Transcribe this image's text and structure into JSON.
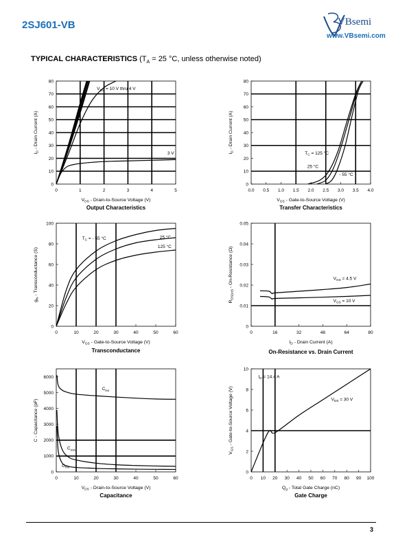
{
  "header": {
    "part_number": "2SJ601-VB",
    "logo_text": "VBsemi",
    "logo_mark": "VB",
    "url": "www.VBsemi.com"
  },
  "section": {
    "title": "TYPICAL CHARACTERISTICS",
    "condition_prefix": "(T",
    "condition_sub": "A",
    "condition_suffix": " = 25 °C, unless otherwise noted)"
  },
  "footer": {
    "page": "3"
  },
  "colors": {
    "brand": "#1a6fb7",
    "ink": "#000000"
  },
  "chart_data": [
    {
      "id": "output",
      "type": "line",
      "title": "Output Characteristics",
      "xlabel": "V_{DS} - Drain-to-Source Voltage (V)",
      "ylabel": "I_{D} - Drain Current (A)",
      "xlim": [
        0,
        5
      ],
      "ylim": [
        0,
        80
      ],
      "xticks": [
        0,
        1,
        2,
        3,
        4,
        5
      ],
      "yticks": [
        0,
        10,
        20,
        30,
        40,
        50,
        60,
        70,
        80
      ],
      "xgrid": [
        1,
        2,
        3,
        4
      ],
      "ygrid": [
        10,
        20,
        30,
        40,
        50,
        60,
        70
      ],
      "series": [
        {
          "values": [
            [
              0,
              0
            ],
            [
              0.5,
              30
            ],
            [
              1,
              63
            ],
            [
              1.27,
              80
            ]
          ]
        },
        {
          "values": [
            [
              0,
              0
            ],
            [
              0.5,
              29
            ],
            [
              1,
              61
            ],
            [
              1.3,
              80
            ]
          ]
        },
        {
          "values": [
            [
              0,
              0
            ],
            [
              0.5,
              28
            ],
            [
              1,
              59
            ],
            [
              1.33,
              80
            ]
          ]
        },
        {
          "values": [
            [
              0,
              0
            ],
            [
              0.5,
              27
            ],
            [
              1,
              57
            ],
            [
              1.37,
              80
            ]
          ]
        },
        {
          "values": [
            [
              0,
              0
            ],
            [
              0.5,
              26
            ],
            [
              1,
              55
            ],
            [
              1.4,
              80
            ]
          ]
        },
        {
          "values": [
            [
              0,
              0
            ],
            [
              0.5,
              23
            ],
            [
              1,
              47
            ],
            [
              1.5,
              65
            ],
            [
              2,
              75
            ],
            [
              2.5,
              80
            ]
          ]
        },
        {
          "values": [
            [
              0,
              0
            ],
            [
              0.1,
              5
            ],
            [
              0.25,
              10
            ],
            [
              0.5,
              14
            ],
            [
              1,
              16
            ],
            [
              2,
              17.5
            ],
            [
              3,
              18
            ],
            [
              4,
              18.5
            ],
            [
              5,
              19
            ]
          ]
        }
      ],
      "annotations": [
        {
          "text": "V_{GS} = 10 V thru 4 V",
          "x": 1.7,
          "y": 73
        },
        {
          "text": "3 V",
          "x": 4.65,
          "y": 23
        }
      ]
    },
    {
      "id": "transfer",
      "type": "line",
      "title": "Transfer Characteristics",
      "xlabel": "V_{GS} - Gate-to-Source Voltage (V)",
      "ylabel": "I_{D} - Drain Current (A)",
      "xlim": [
        0,
        4
      ],
      "ylim": [
        0,
        80
      ],
      "xticks": [
        "0.0",
        "0.5",
        "1.0",
        "1.5",
        "2.0",
        "2.5",
        "3.0",
        "3.5",
        "4.0"
      ],
      "yticks": [
        0,
        10,
        20,
        30,
        40,
        50,
        60,
        70,
        80
      ],
      "xgrid": [
        1.5,
        2.5,
        3.5
      ],
      "ygrid": [
        10,
        30,
        50,
        70
      ],
      "series": [
        {
          "name": "T_{C} = 125 °C",
          "values": [
            [
              1.9,
              0
            ],
            [
              2.3,
              3
            ],
            [
              2.6,
              10
            ],
            [
              2.9,
              25
            ],
            [
              3.2,
              48
            ],
            [
              3.5,
              70
            ],
            [
              3.7,
              80
            ]
          ]
        },
        {
          "name": "25 °C",
          "values": [
            [
              2.2,
              0
            ],
            [
              2.5,
              3
            ],
            [
              2.75,
              12
            ],
            [
              3.0,
              28
            ],
            [
              3.3,
              52
            ],
            [
              3.55,
              72
            ],
            [
              3.7,
              80
            ]
          ]
        },
        {
          "name": "- 55 °C",
          "values": [
            [
              2.5,
              0
            ],
            [
              2.7,
              3
            ],
            [
              2.9,
              12
            ],
            [
              3.15,
              30
            ],
            [
              3.4,
              55
            ],
            [
              3.6,
              73
            ],
            [
              3.75,
              80
            ]
          ]
        }
      ],
      "annotations": [
        {
          "text": "T_{C} = 125 °C",
          "x": 1.8,
          "y": 23
        },
        {
          "text": "25 °C",
          "x": 1.88,
          "y": 12.5
        },
        {
          "text": "- 55 °C",
          "x": 2.95,
          "y": 6.5
        }
      ]
    },
    {
      "id": "transconductance",
      "type": "line",
      "title": "Transconductance",
      "xlabel": "V_{GS} - Gate-to-Source Voltage (V)",
      "ylabel": "g_{fs} - Transconductance (S)",
      "xlim": [
        0,
        60
      ],
      "ylim": [
        0,
        100
      ],
      "xticks": [
        0,
        10,
        20,
        30,
        40,
        50,
        60
      ],
      "yticks": [
        0,
        20,
        40,
        60,
        80,
        100
      ],
      "xgrid": [
        10,
        20,
        30
      ],
      "ygrid": [],
      "series": [
        {
          "name": "T_{C} = - 55 °C",
          "values": [
            [
              0,
              0
            ],
            [
              5,
              35
            ],
            [
              10,
              55
            ],
            [
              20,
              73
            ],
            [
              30,
              83
            ],
            [
              40,
              89
            ],
            [
              50,
              93
            ],
            [
              60,
              95
            ]
          ]
        },
        {
          "name": "25 °C",
          "values": [
            [
              0,
              0
            ],
            [
              5,
              28
            ],
            [
              10,
              47
            ],
            [
              20,
              65
            ],
            [
              30,
              75
            ],
            [
              40,
              81
            ],
            [
              50,
              84
            ],
            [
              60,
              86
            ]
          ]
        },
        {
          "name": "125 °C",
          "values": [
            [
              0,
              0
            ],
            [
              5,
              22
            ],
            [
              10,
              38
            ],
            [
              20,
              55
            ],
            [
              30,
              64
            ],
            [
              40,
              69
            ],
            [
              50,
              72
            ],
            [
              60,
              74
            ]
          ]
        }
      ],
      "annotations": [
        {
          "text": "T_{C} = - 55 °C",
          "x": 13,
          "y": 84
        },
        {
          "text": "25 °C",
          "x": 52,
          "y": 85
        },
        {
          "text": "125 °C",
          "x": 51,
          "y": 76
        }
      ]
    },
    {
      "id": "onres",
      "type": "line",
      "title": "On-Resistance vs. Drain Current",
      "xlabel": "I_{D} - Drain Current (A)",
      "ylabel": "R_{DS(on)} - On-Resistance (Ω)",
      "xlim": [
        0,
        80
      ],
      "ylim": [
        0,
        0.05
      ],
      "xticks": [
        0,
        16,
        32,
        48,
        64,
        80
      ],
      "yticks": [
        "0",
        "0.01",
        "0.02",
        "0.03",
        "0.04",
        "0.05"
      ],
      "xgrid": [
        16
      ],
      "ygrid": [
        0.01
      ],
      "series": [
        {
          "name": "V_{GS} = 4.5 V",
          "values": [
            [
              6,
              0.0172
            ],
            [
              12,
              0.017
            ],
            [
              14,
              0.0158
            ],
            [
              16,
              0.0162
            ],
            [
              32,
              0.017
            ],
            [
              48,
              0.0178
            ],
            [
              64,
              0.0188
            ],
            [
              80,
              0.0205
            ]
          ]
        },
        {
          "name": "V_{GS} = 10 V",
          "values": [
            [
              6,
              0.0145
            ],
            [
              12,
              0.0142
            ],
            [
              14,
              0.0132
            ],
            [
              16,
              0.0135
            ],
            [
              32,
              0.0138
            ],
            [
              48,
              0.0141
            ],
            [
              64,
              0.0145
            ],
            [
              80,
              0.015
            ]
          ]
        }
      ],
      "annotations": [
        {
          "text": "V_{GS} = 4.5 V",
          "x": 55,
          "y": 0.0225
        },
        {
          "text": "V_{GS} = 10 V",
          "x": 55,
          "y": 0.0117
        }
      ]
    },
    {
      "id": "capacitance",
      "type": "line",
      "title": "Capacitance",
      "xlabel": "V_{DS} - Drain-to-Source Voltage (V)",
      "ylabel": "C - Capacitance (pF)",
      "xlim": [
        0,
        60
      ],
      "ylim": [
        0,
        6500
      ],
      "xticks": [
        0,
        10,
        20,
        30,
        40,
        50,
        60
      ],
      "yticks": [
        0,
        1000,
        2000,
        3000,
        4000,
        5000,
        6000
      ],
      "xgrid": [
        10,
        20,
        30
      ],
      "ygrid": [
        1000,
        2000
      ],
      "series": [
        {
          "name": "C_{iss}",
          "values": [
            [
              0.3,
              6100
            ],
            [
              1,
              5450
            ],
            [
              3,
              5150
            ],
            [
              6,
              5000
            ],
            [
              10,
              4900
            ],
            [
              20,
              4800
            ],
            [
              30,
              4720
            ],
            [
              40,
              4650
            ],
            [
              50,
              4600
            ],
            [
              60,
              4580
            ]
          ]
        },
        {
          "name": "C_{oss}",
          "values": [
            [
              0.3,
              3900
            ],
            [
              1,
              2400
            ],
            [
              3,
              1400
            ],
            [
              6,
              950
            ],
            [
              10,
              750
            ],
            [
              20,
              550
            ],
            [
              30,
              450
            ],
            [
              40,
              400
            ],
            [
              50,
              370
            ],
            [
              60,
              350
            ]
          ]
        },
        {
          "name": "C_{rss}",
          "values": [
            [
              0.3,
              2900
            ],
            [
              1,
              1300
            ],
            [
              3,
              550
            ],
            [
              6,
              350
            ],
            [
              10,
              280
            ],
            [
              20,
              220
            ],
            [
              30,
              190
            ],
            [
              40,
              170
            ],
            [
              50,
              160
            ],
            [
              60,
              155
            ]
          ]
        }
      ],
      "annotations": [
        {
          "text": "C_{iss}",
          "x": 23,
          "y": 5150
        },
        {
          "text": "C_{oss}",
          "x": 5.5,
          "y": 1400
        },
        {
          "text": "C_{rss}",
          "x": 2.8,
          "y": 300
        }
      ]
    },
    {
      "id": "gatecharge",
      "type": "line",
      "title": "Gate Charge",
      "xlabel": "Q_{g} - Total Gate Charge (nC)",
      "ylabel": "V_{GS} - Gate-to-Source Voltage (V)",
      "xlim": [
        0,
        100
      ],
      "ylim": [
        0,
        10
      ],
      "xticks": [
        0,
        10,
        20,
        30,
        40,
        50,
        60,
        70,
        80,
        90,
        100
      ],
      "yticks": [
        0,
        2,
        4,
        6,
        8,
        10
      ],
      "xgrid": [
        10,
        20
      ],
      "ygrid": [
        4
      ],
      "series": [
        {
          "values": [
            [
              0,
              0
            ],
            [
              14,
              3.8
            ],
            [
              20,
              3.8
            ],
            [
              40,
              5.5
            ],
            [
              60,
              7
            ],
            [
              80,
              8.5
            ],
            [
              100,
              10
            ]
          ]
        }
      ],
      "annotations": [
        {
          "text": "I_{D} = 14.4 A",
          "x": 6,
          "y": 9.1
        },
        {
          "text": "V_{DS} = 30 V",
          "x": 67,
          "y": 6.9
        }
      ]
    }
  ]
}
